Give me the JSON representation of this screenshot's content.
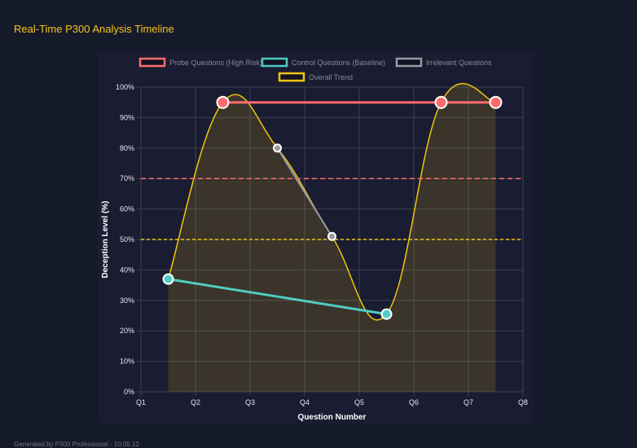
{
  "title": "Real-Time P300 Analysis Timeline",
  "footer": "Generated by P300 Professional - 10:05:12",
  "chart_data": {
    "type": "line",
    "xlabel": "Question Number",
    "ylabel": "Deception Level (%)",
    "x_ticks": [
      "Q1",
      "Q2",
      "Q3",
      "Q4",
      "Q5",
      "Q6",
      "Q7",
      "Q8"
    ],
    "xlim": [
      1,
      8
    ],
    "ylim": [
      0,
      100
    ],
    "y_ticks": [
      "0%",
      "10%",
      "20%",
      "30%",
      "40%",
      "50%",
      "60%",
      "70%",
      "80%",
      "90%",
      "100%"
    ],
    "grid": true,
    "legend": "top",
    "series": [
      {
        "name": "Probe Questions (High Risk)",
        "color": "#ff6b6b",
        "points": [
          [
            2.5,
            95
          ],
          [
            6.5,
            95
          ],
          [
            7.5,
            95
          ]
        ]
      },
      {
        "name": "Control Questions (Baseline)",
        "color": "#4ecdc4",
        "points": [
          [
            1.5,
            37
          ],
          [
            5.5,
            25.5
          ]
        ]
      },
      {
        "name": "Irrelevant Questions",
        "color": "#9a9aa3",
        "points": [
          [
            3.5,
            80
          ],
          [
            4.5,
            51
          ]
        ]
      },
      {
        "name": "Overall Trend",
        "color": "#f1c40f",
        "fill": true,
        "points": [
          [
            1.5,
            37
          ],
          [
            2.5,
            95
          ],
          [
            3.5,
            80
          ],
          [
            4.5,
            51
          ],
          [
            5.5,
            25.5
          ],
          [
            6.5,
            95
          ],
          [
            7.5,
            95
          ]
        ]
      }
    ],
    "thresholds": [
      {
        "y": 70,
        "color": "#ff6b6b"
      },
      {
        "y": 50,
        "color": "#f1c40f"
      }
    ]
  }
}
